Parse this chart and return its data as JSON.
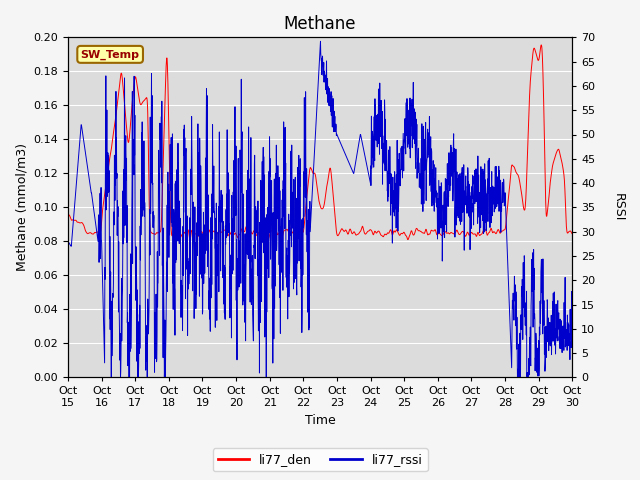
{
  "title": "Methane",
  "xlabel": "Time",
  "ylabel_left": "Methane (mmol/m3)",
  "ylabel_right": "RSSI",
  "ylim_left": [
    0.0,
    0.2
  ],
  "ylim_right": [
    0,
    70
  ],
  "yticks_left": [
    0.0,
    0.02,
    0.04,
    0.06,
    0.08,
    0.1,
    0.12,
    0.14,
    0.16,
    0.18,
    0.2
  ],
  "yticks_right": [
    0,
    5,
    10,
    15,
    20,
    25,
    30,
    35,
    40,
    45,
    50,
    55,
    60,
    65,
    70
  ],
  "xtick_labels": [
    "Oct\n15",
    "Oct\n16",
    "Oct\n17",
    "Oct\n18",
    "Oct\n19",
    "Oct\n20",
    "Oct\n21",
    "Oct\n22",
    "Oct\n23",
    "Oct\n24",
    "Oct\n25",
    "Oct\n26",
    "Oct\n27",
    "Oct\n28",
    "Oct\n29",
    "Oct\n30"
  ],
  "bg_color": "#dcdcdc",
  "fig_color": "#f5f5f5",
  "grid_color": "#ffffff",
  "line_red_color": "#ff0000",
  "line_blue_color": "#0000cc",
  "legend_entries": [
    "li77_den",
    "li77_rssi"
  ],
  "sw_temp_label": "SW_Temp",
  "sw_temp_bg": "#ffffaa",
  "sw_temp_border": "#996600",
  "sw_temp_text_color": "#990000",
  "title_fontsize": 12,
  "axis_label_fontsize": 9,
  "tick_fontsize": 8
}
